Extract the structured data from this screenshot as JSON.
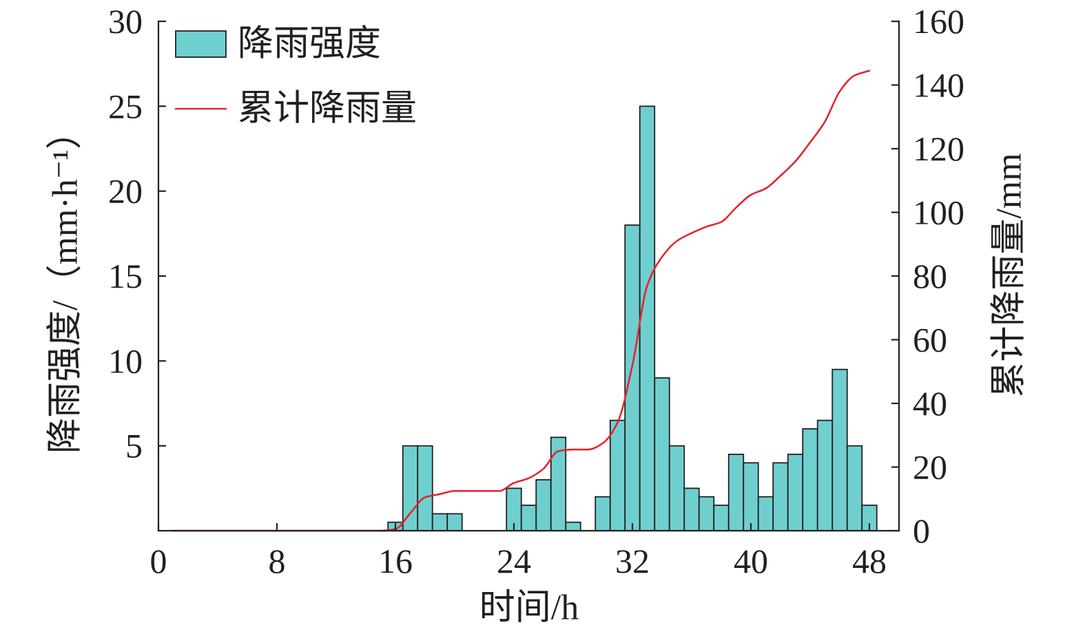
{
  "chart_data": {
    "type": "bar",
    "xlabel": "时间/h",
    "ylabel": "降雨强度/（mm·h⁻¹）",
    "y2label": "累计降雨量/mm",
    "xlim": [
      0,
      50
    ],
    "ylim": [
      0,
      30
    ],
    "y2lim": [
      0,
      160
    ],
    "xticks": [
      0,
      8,
      16,
      24,
      32,
      40,
      48
    ],
    "yticks": [
      5,
      10,
      15,
      20,
      25,
      30
    ],
    "y2ticks": [
      0,
      20,
      40,
      60,
      80,
      100,
      120,
      140,
      160
    ],
    "grid": false,
    "legend": "top-left",
    "series": [
      {
        "name": "降雨强度",
        "type": "bar",
        "axis": "left",
        "color": "#6FCFCF",
        "x": [
          16,
          17,
          18,
          19,
          20,
          21,
          22,
          23,
          24,
          25,
          26,
          27,
          28,
          29,
          30,
          31,
          32,
          33,
          34,
          35,
          36,
          37,
          38,
          39,
          40,
          41,
          42,
          43,
          44,
          45,
          46,
          47,
          48
        ],
        "values": [
          0.5,
          5,
          5,
          1,
          1,
          0,
          0,
          0,
          2.5,
          1.5,
          3,
          5.5,
          0.5,
          0,
          2,
          6.5,
          18,
          25,
          9,
          5,
          2.5,
          2,
          1.5,
          4.5,
          4,
          2,
          4,
          4.5,
          6,
          6.5,
          9.5,
          5,
          1.5
        ]
      },
      {
        "name": "累计降雨量",
        "type": "line",
        "axis": "right",
        "color": "#E1262D",
        "x": [
          1,
          2,
          3,
          4,
          5,
          6,
          7,
          8,
          9,
          10,
          11,
          12,
          13,
          14,
          15,
          16,
          17,
          18,
          19,
          20,
          21,
          22,
          23,
          24,
          25,
          26,
          27,
          28,
          29,
          30,
          31,
          32,
          33,
          34,
          35,
          36,
          37,
          38,
          39,
          40,
          41,
          42,
          43,
          44,
          45,
          46,
          47,
          48
        ],
        "values": [
          0,
          0,
          0,
          0,
          0,
          0,
          0,
          0,
          0,
          0,
          0,
          0,
          0,
          0,
          0,
          0.5,
          5.5,
          10.5,
          11.5,
          12.5,
          12.5,
          12.5,
          12.5,
          15,
          16.5,
          19.5,
          25,
          25.5,
          25.5,
          27.5,
          34,
          52,
          77,
          86,
          91,
          93.5,
          95.5,
          97,
          101.5,
          105.5,
          107.5,
          111.5,
          116,
          122,
          128.5,
          138,
          143,
          144.5
        ]
      }
    ]
  }
}
